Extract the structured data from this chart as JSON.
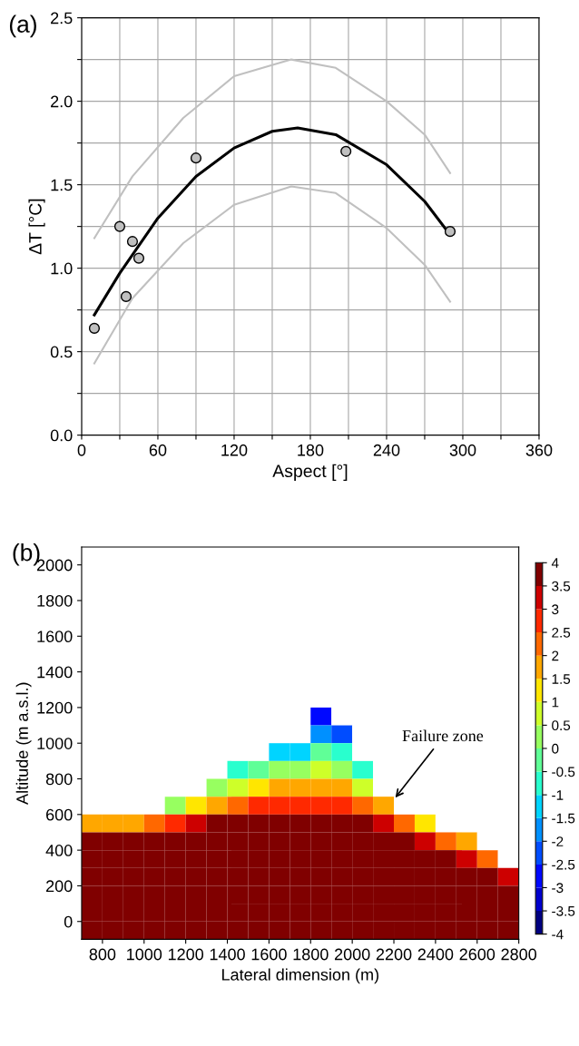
{
  "chart_data": [
    {
      "type": "scatter",
      "xlabel": "Aspect [°]",
      "ylabel": "ΔT [°C]",
      "annotations": [
        "(a)"
      ],
      "xlim": [
        0,
        360
      ],
      "ylim": [
        0,
        2.5
      ],
      "xticks": [
        0,
        {
          "value": 30,
          "label": null
        },
        60,
        {
          "value": 90,
          "label": null
        },
        120,
        {
          "value": 150,
          "label": null
        },
        180,
        {
          "value": 210,
          "label": null
        },
        240,
        {
          "value": 270,
          "label": null
        },
        300,
        {
          "value": 330,
          "label": null
        },
        360
      ],
      "yticks": [
        {
          "value": 0,
          "label": "0.0"
        },
        {
          "value": 0.25,
          "label": null
        },
        0.5,
        {
          "value": 0.75,
          "label": null
        },
        {
          "value": 1,
          "label": "1.0"
        },
        {
          "value": 1.25,
          "label": null
        },
        1.5,
        {
          "value": 1.75,
          "label": null
        },
        {
          "value": 2,
          "label": "2.0"
        },
        {
          "value": 2.25,
          "label": null
        },
        2.5
      ],
      "grid": true,
      "series": [
        {
          "type": "line",
          "color": "#c0c0c0",
          "marker": "none",
          "x": [
            10,
            40,
            80,
            120,
            165,
            200,
            240,
            270,
            290
          ],
          "values": [
            1.18,
            1.55,
            1.9,
            2.15,
            2.25,
            2.2,
            2.0,
            1.8,
            1.57
          ]
        },
        {
          "type": "line",
          "color": "#c0c0c0",
          "marker": "none",
          "x": [
            10,
            40,
            80,
            120,
            165,
            200,
            240,
            270,
            290
          ],
          "values": [
            0.43,
            0.82,
            1.15,
            1.38,
            1.49,
            1.45,
            1.24,
            1.02,
            0.8
          ]
        },
        {
          "type": "line",
          "color": "#000000",
          "marker": "none",
          "x": [
            10,
            30,
            60,
            90,
            120,
            150,
            170,
            200,
            240,
            270,
            290
          ],
          "values": [
            0.72,
            0.97,
            1.3,
            1.55,
            1.72,
            1.82,
            1.84,
            1.8,
            1.62,
            1.4,
            1.2
          ]
        },
        {
          "type": "scatter",
          "color": "#c0c0c0",
          "marker": "circle",
          "x": [
            10,
            30,
            35,
            40,
            45,
            90,
            208,
            290
          ],
          "values": [
            0.64,
            1.25,
            0.83,
            1.16,
            1.06,
            1.66,
            1.7,
            1.22
          ]
        }
      ]
    },
    {
      "type": "heatmap",
      "xlabel": "Lateral dimension (m)",
      "ylabel": "Altitude (m a.s.l.)",
      "annotations": [
        "(b)",
        "Failure zone"
      ],
      "xlim": [
        700,
        2800
      ],
      "ylim": [
        -100,
        2100
      ],
      "xticks": [
        800,
        1000,
        1200,
        1400,
        1600,
        1800,
        2000,
        2200,
        2400,
        2600,
        2800
      ],
      "yticks": [
        0,
        200,
        400,
        600,
        800,
        1000,
        1200,
        1400,
        1600,
        1800,
        2000
      ],
      "clim": [
        -4,
        4
      ],
      "cticks": [
        -4,
        -3.5,
        -3,
        -2.5,
        -2,
        -1.5,
        -1,
        -0.5,
        0,
        0.5,
        1,
        1.5,
        2,
        2.5,
        3,
        3.5,
        4
      ],
      "x": [
        750,
        850,
        950,
        1050,
        1150,
        1250,
        1350,
        1450,
        1550,
        1650,
        1750,
        1850,
        1950,
        2050,
        2150,
        2250,
        2350,
        2450,
        2550,
        2650,
        2750
      ],
      "y": [
        1150,
        1050,
        950,
        850,
        750,
        650,
        550,
        450,
        350,
        250,
        150,
        50,
        -50
      ],
      "cells": [
        [
          null,
          null,
          null,
          null,
          null,
          null,
          null,
          null,
          null,
          null,
          null,
          -3,
          null,
          null,
          null,
          null,
          null,
          null,
          null,
          null,
          null
        ],
        [
          null,
          null,
          null,
          null,
          null,
          null,
          null,
          null,
          null,
          null,
          null,
          -2,
          -2.5,
          null,
          null,
          null,
          null,
          null,
          null,
          null,
          null
        ],
        [
          null,
          null,
          null,
          null,
          null,
          null,
          null,
          null,
          null,
          -1.5,
          -1.5,
          -0.5,
          -1,
          null,
          null,
          null,
          null,
          null,
          null,
          null,
          null
        ],
        [
          null,
          null,
          null,
          null,
          null,
          null,
          null,
          -1,
          -0.5,
          0,
          0,
          0.5,
          0,
          -1,
          null,
          null,
          null,
          null,
          null,
          null,
          null
        ],
        [
          null,
          null,
          null,
          null,
          null,
          null,
          0,
          0.5,
          1,
          1.5,
          1.5,
          1.5,
          1.5,
          0.5,
          null,
          null,
          null,
          null,
          null,
          null,
          null
        ],
        [
          null,
          null,
          null,
          null,
          0,
          1,
          1.5,
          2,
          2.5,
          2.5,
          2.5,
          2.5,
          2.5,
          2,
          1.5,
          null,
          null,
          null,
          null,
          null,
          null
        ],
        [
          1.5,
          1.5,
          1.5,
          2,
          2.5,
          3,
          3.5,
          3.5,
          3.5,
          3.5,
          4,
          3.5,
          3.5,
          3.5,
          3,
          2,
          1,
          null,
          null,
          null,
          null
        ],
        [
          4,
          4,
          4,
          4,
          4,
          4,
          4,
          4,
          4,
          4,
          4,
          4,
          4,
          4,
          4,
          3.5,
          3,
          2,
          1.5,
          null,
          null
        ],
        [
          4,
          4,
          4,
          4,
          4,
          4,
          4,
          4,
          4,
          4,
          4,
          4,
          4,
          4,
          4,
          4,
          4,
          3.5,
          3,
          2,
          null
        ],
        [
          4,
          4,
          4,
          4,
          4,
          4,
          4,
          4,
          4,
          4,
          4,
          4,
          4,
          4,
          4,
          4,
          4,
          4,
          4,
          3.5,
          3
        ],
        [
          4,
          4,
          4,
          4,
          4,
          4,
          4,
          4,
          4,
          4,
          4,
          4,
          4,
          4,
          4,
          4,
          4,
          4,
          4,
          4,
          4
        ],
        [
          4,
          4,
          4,
          4,
          4,
          4,
          4,
          4,
          4,
          4,
          4,
          4,
          4,
          4,
          4,
          4,
          4,
          4,
          4,
          4,
          4
        ],
        [
          4,
          4,
          4,
          4,
          4,
          4,
          4,
          4,
          4,
          4,
          4,
          4,
          4,
          4,
          4,
          4,
          4,
          4,
          4,
          4,
          4
        ]
      ]
    }
  ]
}
